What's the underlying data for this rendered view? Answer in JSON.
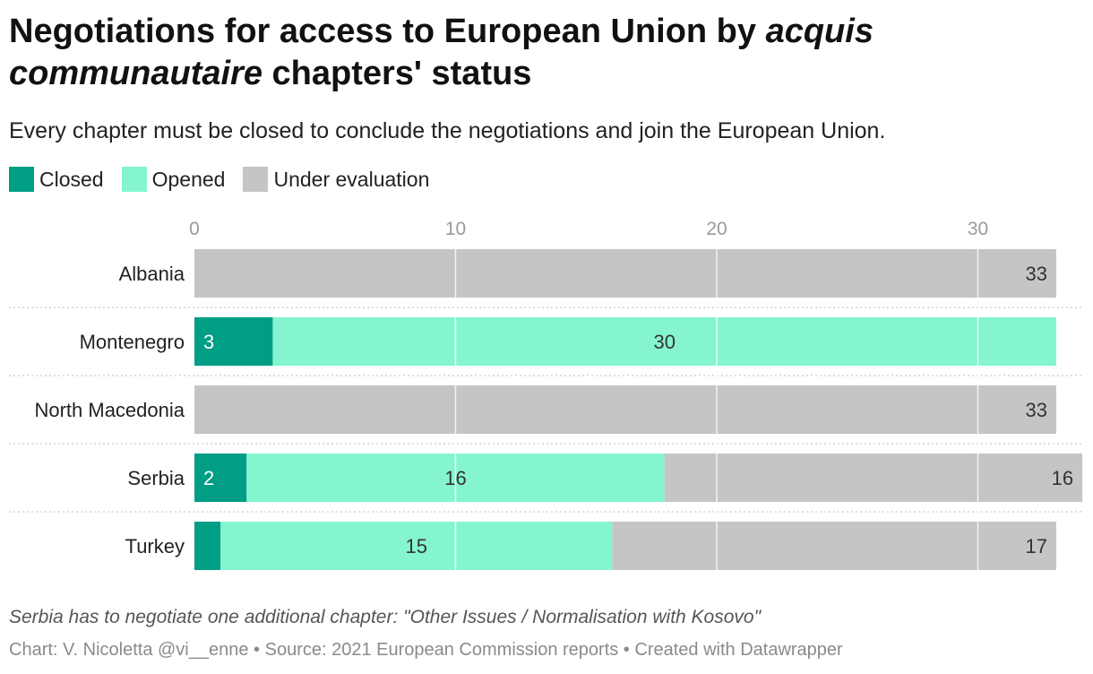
{
  "title_plain": "Negotiations for access to European Union by ",
  "title_italic": "acquis communautaire",
  "title_rest": " chapters' status",
  "subtitle": "Every chapter must be closed to conclude the negotiations and join the European Union.",
  "notes": "Serbia has to negotiate one additional chapter: \"Other Issues / Normalisation with Kosovo\"",
  "credits": "Chart: V. Nicoletta @vi__enne • Source: 2021 European Commission reports • Created with Datawrapper",
  "chart_data": {
    "type": "bar",
    "orientation": "horizontal",
    "stacked": true,
    "categories": [
      "Albania",
      "Montenegro",
      "North Macedonia",
      "Serbia",
      "Turkey"
    ],
    "series": [
      {
        "name": "Closed",
        "color": "#009e85",
        "values": [
          0,
          3,
          0,
          2,
          1
        ],
        "labels": [
          "",
          "3",
          "",
          "2",
          ""
        ]
      },
      {
        "name": "Opened",
        "color": "#84f5cf",
        "values": [
          0,
          30,
          0,
          16,
          15
        ],
        "labels": [
          "",
          "30",
          "",
          "16",
          "15"
        ]
      },
      {
        "name": "Under evaluation",
        "color": "#c5c5c5",
        "values": [
          33,
          0,
          33,
          16,
          17
        ],
        "labels": [
          "33",
          "",
          "33",
          "16",
          "17"
        ]
      }
    ],
    "xticks": [
      "0",
      "10",
      "20",
      "30"
    ],
    "xlim": [
      0,
      33
    ],
    "grid": true,
    "legend": "top-left"
  }
}
